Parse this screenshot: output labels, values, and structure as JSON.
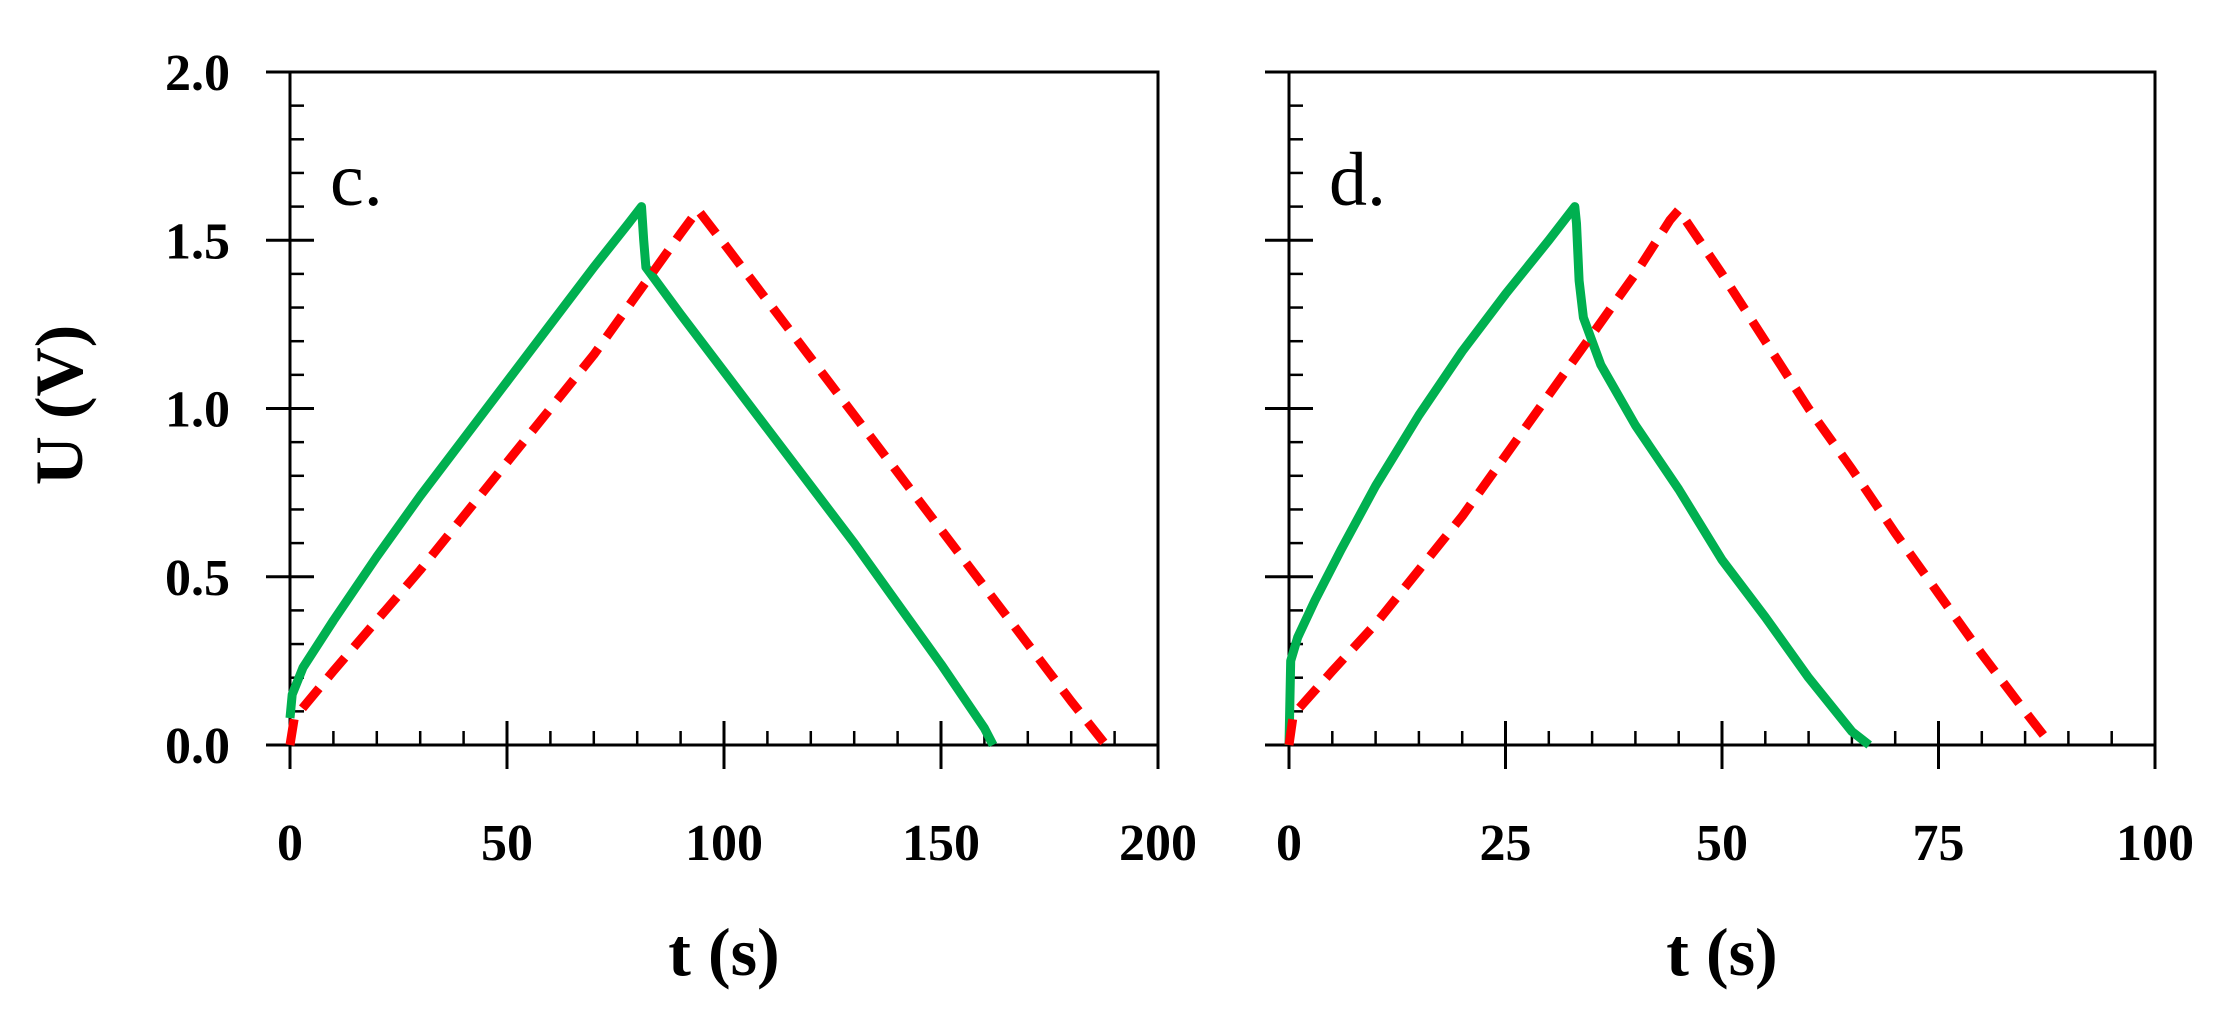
{
  "chart_data": [
    {
      "type": "line",
      "panel_label": "c.",
      "xlabel": "t (s)",
      "ylabel": "U (V)",
      "xlim": [
        0,
        200
      ],
      "ylim": [
        0,
        2.0
      ],
      "xticks": [
        0,
        50,
        100,
        150,
        200
      ],
      "xtick_labels": [
        "0",
        "50",
        "100",
        "150",
        "200"
      ],
      "yticks": [
        0,
        0.5,
        1.0,
        1.5,
        2.0
      ],
      "ytick_labels": [
        "0.0",
        "0.5",
        "1.0",
        "1.5",
        "2.0"
      ],
      "grid": false,
      "series": [
        {
          "color": "#00b050",
          "style": "solid",
          "x": [
            0,
            0.5,
            3,
            10,
            20,
            30,
            40,
            50,
            60,
            70,
            78,
            81,
            81.5,
            82,
            90,
            100,
            110,
            120,
            130,
            140,
            150,
            160,
            162
          ],
          "y": [
            0.08,
            0.15,
            0.23,
            0.37,
            0.56,
            0.74,
            0.91,
            1.08,
            1.25,
            1.42,
            1.55,
            1.6,
            1.5,
            1.42,
            1.28,
            1.11,
            0.94,
            0.77,
            0.6,
            0.42,
            0.24,
            0.05,
            0.0
          ]
        },
        {
          "color": "#ff0000",
          "style": "dashed",
          "x": [
            0,
            1,
            10,
            20,
            30,
            40,
            50,
            60,
            70,
            80,
            90,
            94,
            100,
            110,
            120,
            130,
            140,
            150,
            160,
            170,
            180,
            188
          ],
          "y": [
            0.0,
            0.08,
            0.22,
            0.37,
            0.52,
            0.68,
            0.84,
            1.0,
            1.16,
            1.34,
            1.52,
            1.59,
            1.49,
            1.32,
            1.15,
            0.98,
            0.81,
            0.64,
            0.47,
            0.3,
            0.13,
            0.0
          ]
        }
      ]
    },
    {
      "type": "line",
      "panel_label": "d.",
      "xlabel": "t (s)",
      "ylabel": "",
      "xlim": [
        0,
        100
      ],
      "ylim": [
        0,
        2.0
      ],
      "xticks": [
        0,
        25,
        50,
        75,
        100
      ],
      "xtick_labels": [
        "0",
        "25",
        "50",
        "75",
        "100"
      ],
      "yticks": [
        0,
        0.5,
        1.0,
        1.5,
        2.0
      ],
      "ytick_labels": [],
      "grid": false,
      "series": [
        {
          "color": "#00b050",
          "style": "solid",
          "x": [
            0,
            0.2,
            1,
            3,
            6,
            10,
            15,
            20,
            25,
            30,
            33,
            33.2,
            33.5,
            34,
            36,
            40,
            45,
            50,
            55,
            60,
            65,
            67
          ],
          "y": [
            0.0,
            0.25,
            0.32,
            0.43,
            0.58,
            0.77,
            0.98,
            1.17,
            1.34,
            1.5,
            1.6,
            1.55,
            1.38,
            1.27,
            1.13,
            0.95,
            0.76,
            0.55,
            0.38,
            0.2,
            0.04,
            0.0
          ]
        },
        {
          "color": "#ff0000",
          "style": "dashed",
          "x": [
            0,
            0.5,
            5,
            10,
            15,
            20,
            25,
            30,
            35,
            40,
            44,
            45,
            50,
            55,
            60,
            65,
            70,
            75,
            80,
            85,
            88
          ],
          "y": [
            0.0,
            0.09,
            0.22,
            0.36,
            0.52,
            0.68,
            0.86,
            1.04,
            1.22,
            1.4,
            1.56,
            1.59,
            1.4,
            1.2,
            1.0,
            0.82,
            0.63,
            0.45,
            0.27,
            0.1,
            0.0
          ]
        }
      ]
    }
  ]
}
